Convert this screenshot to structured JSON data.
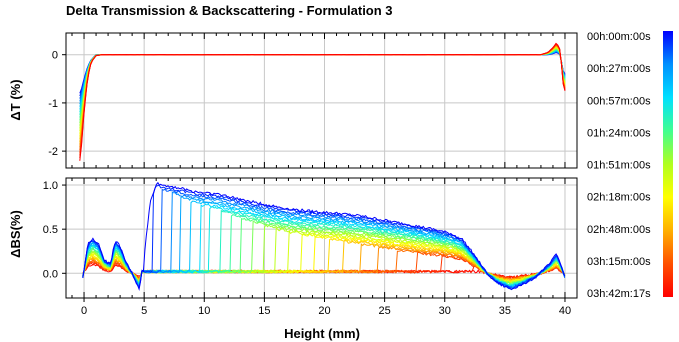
{
  "chart_data": {
    "type": "line",
    "title": "Delta Transmission & Backscattering - Formulation 3",
    "xlabel": "Height (mm)",
    "xlim": [
      -1.5,
      41
    ],
    "x_ticks": [
      0,
      5,
      10,
      15,
      20,
      25,
      30,
      35,
      40
    ],
    "x_tick_labels": [
      "0",
      "5",
      "10",
      "15",
      "20",
      "25",
      "30",
      "35",
      "40"
    ],
    "grid": true,
    "panels": [
      {
        "name": "transmission",
        "ylabel": "ΔT (%)",
        "ylim": [
          -2.35,
          0.45
        ],
        "y_ticks": [
          0,
          -1,
          -2
        ],
        "y_tick_labels": [
          "0",
          "-1",
          "-2"
        ]
      },
      {
        "name": "backscattering",
        "ylabel": "ΔBS(%)",
        "ylim": [
          -0.28,
          1.08
        ],
        "y_ticks": [
          0.0,
          0.5,
          1.0
        ],
        "y_tick_labels": [
          "0.0",
          "0.5",
          "1.0"
        ]
      }
    ],
    "colorbar": {
      "colormap": "jet",
      "direction": "blue-top-to-red-bottom",
      "colors": [
        "#0000ff",
        "#0090ff",
        "#00e0ff",
        "#40ff90",
        "#b0ff20",
        "#ffff00",
        "#ffb000",
        "#ff5000",
        "#ff0000"
      ],
      "labels": [
        "00h:00m:00s",
        "00h:27m:00s",
        "00h:57m:00s",
        "01h:24m:00s",
        "01h:51m:00s",
        "02h:18m:00s",
        "02h:48m:00s",
        "03h:15m:00s",
        "03h:42m:17s"
      ]
    },
    "series_note_count": 26,
    "transmission_profile": {
      "x": [
        -0.3,
        0,
        0.3,
        0.6,
        1.0,
        1.5,
        3,
        10,
        20,
        30,
        38,
        38.6,
        39.0,
        39.3,
        39.6,
        39.9
      ],
      "last_y": [
        -2.2,
        -1.2,
        -0.5,
        -0.15,
        -0.02,
        0,
        0,
        0,
        0,
        0,
        0,
        0.05,
        0.15,
        0.25,
        0.1,
        -0.75
      ],
      "first_y": [
        -0.8,
        -0.5,
        -0.25,
        -0.1,
        0,
        0,
        0,
        0,
        0,
        0,
        0,
        0,
        0.02,
        0.05,
        0.0,
        -0.4
      ]
    },
    "backscattering_final": {
      "x": [
        -0.1,
        0.3,
        0.7,
        1.2,
        1.7,
        2.2,
        2.6,
        3.0,
        3.5,
        4.0,
        4.6,
        5.0,
        5.5,
        6.0,
        6.5,
        7.5,
        9,
        11,
        13,
        15,
        17,
        19,
        21,
        23,
        25,
        27,
        29,
        30.5,
        31.5,
        32.5,
        33.5,
        34.5,
        35.5,
        36.5,
        37.5,
        38.3,
        38.8,
        39.3,
        39.7,
        40.0
      ],
      "y": [
        -0.05,
        0.32,
        0.4,
        0.33,
        0.15,
        0.1,
        0.38,
        0.3,
        0.12,
        0.0,
        -0.18,
        0.2,
        0.8,
        1.02,
        1.0,
        0.98,
        0.93,
        0.9,
        0.84,
        0.78,
        0.73,
        0.7,
        0.68,
        0.65,
        0.6,
        0.55,
        0.5,
        0.45,
        0.38,
        0.2,
        0.0,
        -0.12,
        -0.18,
        -0.12,
        -0.05,
        0.05,
        0.12,
        0.22,
        0.08,
        -0.05
      ]
    }
  }
}
